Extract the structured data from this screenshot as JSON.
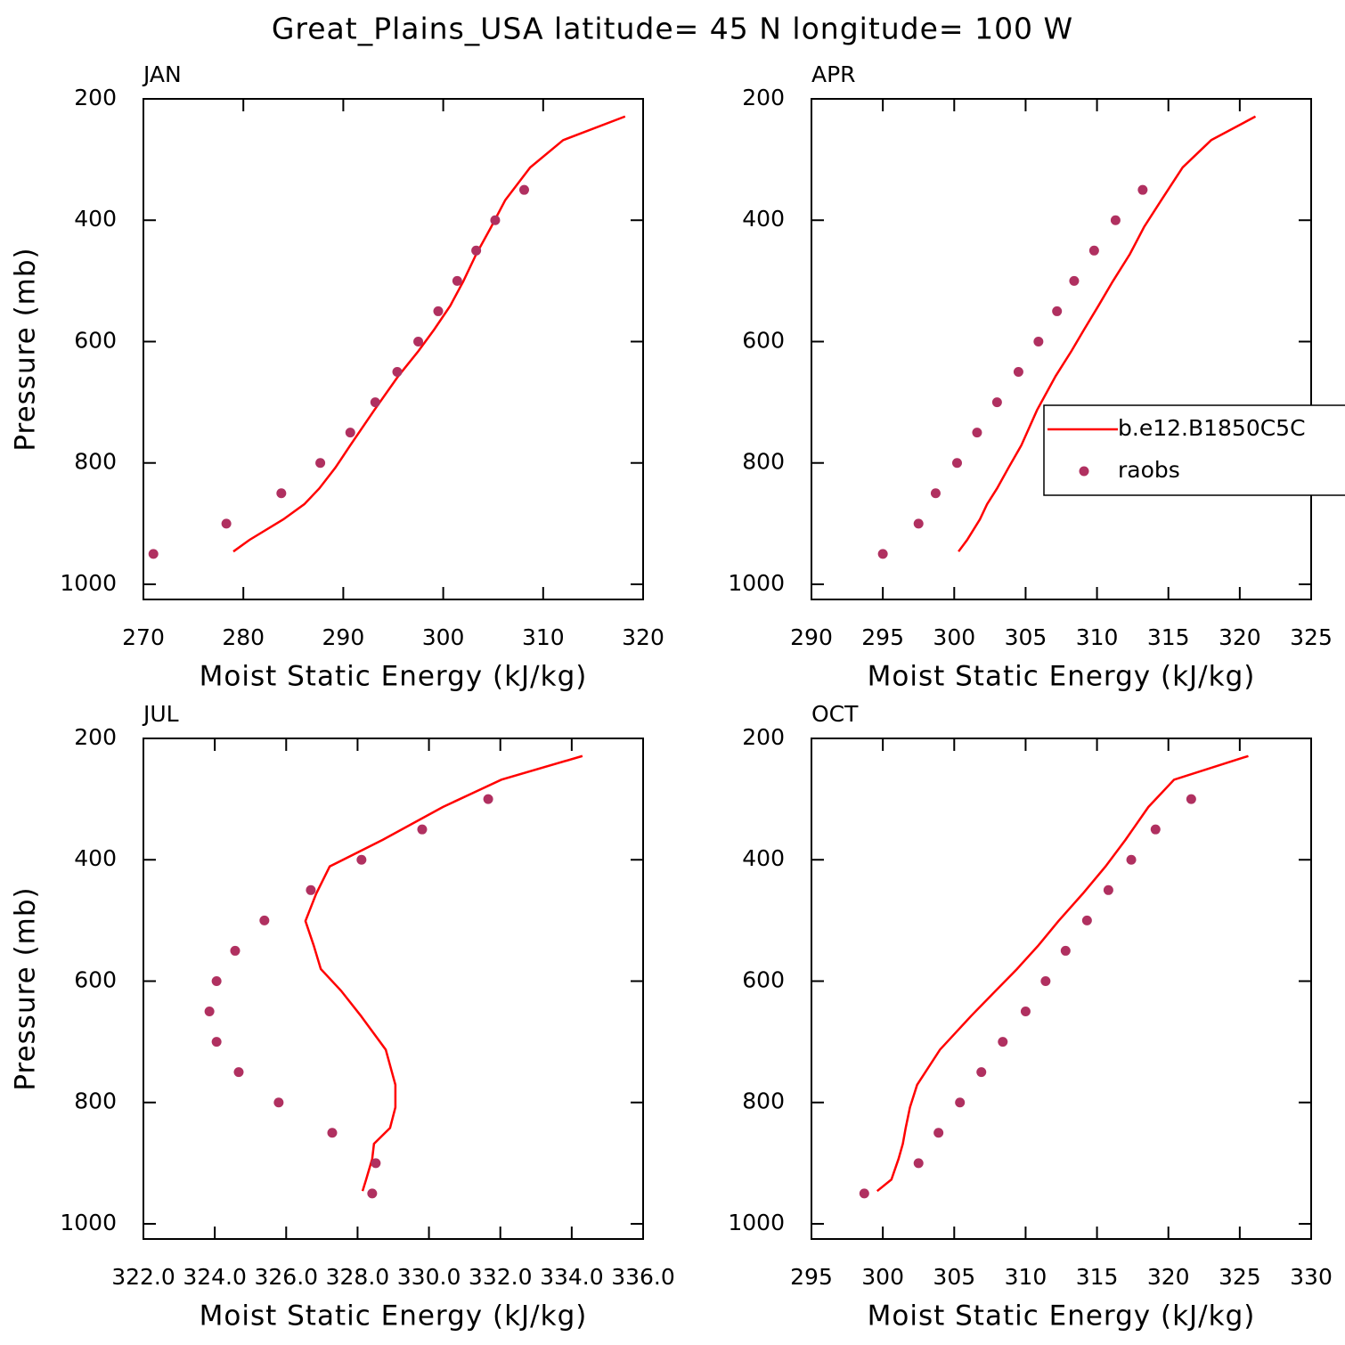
{
  "title": "Great_Plains_USA  latitude= 45 N longitude= 100 W",
  "chart_data": [
    {
      "type": "line",
      "title": "JAN",
      "xlabel": "Moist Static Energy (kJ/kg)",
      "ylabel": "Pressure (mb)",
      "xlim": [
        270,
        320
      ],
      "xticks": [
        270,
        280,
        290,
        300,
        310,
        320
      ],
      "ylim": [
        1025,
        200
      ],
      "yticks": [
        200,
        400,
        600,
        800,
        1000
      ],
      "series": [
        {
          "mode": "line",
          "color": "#ff0000",
          "x": [
            279.0,
            280.6,
            284.0,
            286.1,
            287.6,
            289.2,
            290.7,
            293.1,
            295.5,
            297.5,
            299.1,
            300.7,
            302.0,
            303.3,
            304.8,
            306.2,
            308.7,
            312.0,
            318.2
          ],
          "y": [
            946,
            927,
            893,
            868,
            842,
            808,
            771,
            713,
            657,
            616,
            580,
            541,
            501,
            456,
            411,
            367,
            313,
            268,
            229
          ]
        },
        {
          "mode": "markers",
          "color": "#b03060",
          "x": [
            271.0,
            278.3,
            283.8,
            287.7,
            290.7,
            293.2,
            295.4,
            297.5,
            299.5,
            301.4,
            303.3,
            305.2,
            308.1
          ],
          "y": [
            950,
            900,
            850,
            800,
            750,
            700,
            650,
            600,
            550,
            500,
            450,
            400,
            350
          ]
        }
      ]
    },
    {
      "type": "line",
      "title": "APR",
      "xlabel": "Moist Static Energy (kJ/kg)",
      "xlim": [
        290,
        325
      ],
      "xticks": [
        290,
        295,
        300,
        305,
        310,
        315,
        320,
        325
      ],
      "ylim": [
        1025,
        200
      ],
      "yticks": [
        200,
        400,
        600,
        800,
        1000
      ],
      "legend": "right",
      "series": [
        {
          "name": "b.e12.B1850C5C",
          "mode": "line",
          "color": "#ff0000",
          "x": [
            300.3,
            300.9,
            301.8,
            302.3,
            303.0,
            303.8,
            304.7,
            305.8,
            307.1,
            308.2,
            309.1,
            310.1,
            311.1,
            312.3,
            313.3,
            314.5,
            316.0,
            318.0,
            321.1
          ],
          "y": [
            946,
            927,
            893,
            868,
            842,
            808,
            771,
            713,
            657,
            616,
            580,
            541,
            501,
            456,
            411,
            367,
            313,
            268,
            229
          ]
        },
        {
          "name": "raobs",
          "mode": "markers",
          "color": "#b03060",
          "x": [
            295.0,
            297.5,
            298.7,
            300.2,
            301.6,
            303.0,
            304.5,
            305.9,
            307.2,
            308.4,
            309.8,
            311.3,
            313.2
          ],
          "y": [
            950,
            900,
            850,
            800,
            750,
            700,
            650,
            600,
            550,
            500,
            450,
            400,
            350
          ]
        }
      ]
    },
    {
      "type": "line",
      "title": "JUL",
      "xlabel": "Moist Static Energy (kJ/kg)",
      "ylabel": "Pressure (mb)",
      "xlim": [
        322,
        336
      ],
      "xticks": [
        {
          "value": 322,
          "label": "322.0"
        },
        {
          "value": 324,
          "label": "324.0"
        },
        {
          "value": 326,
          "label": "326.0"
        },
        {
          "value": 328,
          "label": "328.0"
        },
        {
          "value": 330,
          "label": "330.0"
        },
        {
          "value": 332,
          "label": "332.0"
        },
        {
          "value": 334,
          "label": "334.0"
        },
        {
          "value": 336,
          "label": "336.0"
        }
      ],
      "ylim": [
        1025,
        200
      ],
      "yticks": [
        200,
        400,
        600,
        800,
        1000
      ],
      "series": [
        {
          "mode": "line",
          "color": "#ff0000",
          "x": [
            328.14,
            328.24,
            328.41,
            328.46,
            328.91,
            329.06,
            329.06,
            328.79,
            328.09,
            327.54,
            326.97,
            326.77,
            326.54,
            326.84,
            327.22,
            328.71,
            330.39,
            332.03,
            334.3
          ],
          "y": [
            946,
            927,
            893,
            868,
            842,
            808,
            771,
            713,
            657,
            616,
            580,
            541,
            501,
            456,
            411,
            367,
            313,
            268,
            229
          ]
        },
        {
          "mode": "markers",
          "color": "#b03060",
          "x": [
            328.41,
            328.51,
            327.29,
            325.79,
            324.67,
            324.05,
            323.85,
            324.05,
            324.57,
            325.39,
            326.69,
            328.11,
            329.81,
            331.66
          ],
          "y": [
            950,
            900,
            850,
            800,
            750,
            700,
            650,
            600,
            550,
            500,
            450,
            400,
            350,
            300
          ]
        }
      ]
    },
    {
      "type": "line",
      "title": "OCT",
      "xlabel": "Moist Static Energy (kJ/kg)",
      "xlim": [
        295,
        330
      ],
      "xticks": [
        295,
        300,
        305,
        310,
        315,
        320,
        325,
        330
      ],
      "ylim": [
        1025,
        200
      ],
      "yticks": [
        200,
        400,
        600,
        800,
        1000
      ],
      "series": [
        {
          "mode": "line",
          "color": "#ff0000",
          "x": [
            299.6,
            300.6,
            301.1,
            301.4,
            301.6,
            301.9,
            302.4,
            304.0,
            306.2,
            307.9,
            309.4,
            310.9,
            312.3,
            314.0,
            315.6,
            317.0,
            318.6,
            320.4,
            325.6
          ],
          "y": [
            946,
            927,
            893,
            868,
            842,
            808,
            771,
            713,
            657,
            616,
            580,
            541,
            501,
            456,
            411,
            367,
            313,
            268,
            229
          ]
        },
        {
          "mode": "markers",
          "color": "#b03060",
          "x": [
            298.7,
            302.5,
            303.9,
            305.4,
            306.9,
            308.4,
            310.0,
            311.4,
            312.8,
            314.3,
            315.8,
            317.4,
            319.1,
            321.6
          ],
          "y": [
            950,
            900,
            850,
            800,
            750,
            700,
            650,
            600,
            550,
            500,
            450,
            400,
            350,
            300
          ]
        }
      ]
    }
  ]
}
